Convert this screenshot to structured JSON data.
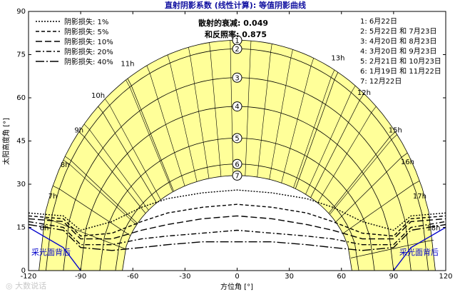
{
  "chart_data": {
    "type": "line",
    "title": "直射阴影系数 (线性计算): 等值阴影曲线",
    "xlabel": "方位角 [°]",
    "ylabel": "太阳高度角 [°]",
    "xlim": [
      -120,
      120
    ],
    "ylim": [
      0,
      90
    ],
    "xticks": [
      -120,
      -90,
      -60,
      -30,
      0,
      30,
      60,
      90,
      120
    ],
    "yticks": [
      0,
      15,
      30,
      45,
      60,
      75,
      90
    ],
    "grid": false,
    "info_lines": [
      "散射的衰减: 0.049",
      "和反照率: 0.875"
    ],
    "shading_legend": [
      {
        "label": "阴影损失: 1%",
        "dash": "2,2"
      },
      {
        "label": "阴影损失: 5%",
        "dash": "5,3"
      },
      {
        "label": "阴影损失: 10%",
        "dash": "9,4"
      },
      {
        "label": "阴影损失: 20%",
        "dash": "7,3,2,3"
      },
      {
        "label": "阴影损失: 40%",
        "dash": "12,3,2,3"
      }
    ],
    "date_legend": [
      "1: 6月22日",
      "2: 5月22日 和 7月23日",
      "3: 4月20日 和 8月23日",
      "4: 3月20日 和 9月23日",
      "5: 2月21日 和 10月23日",
      "6: 1月19日 和 11月22日",
      "7: 12月22日"
    ],
    "sun_paths": [
      {
        "id": "1",
        "max_alt": 80,
        "half_width": 114
      },
      {
        "id": "2",
        "max_alt": 77,
        "half_width": 110
      },
      {
        "id": "3",
        "max_alt": 67,
        "half_width": 100
      },
      {
        "id": "4",
        "max_alt": 57,
        "half_width": 90
      },
      {
        "id": "5",
        "max_alt": 46,
        "half_width": 79
      },
      {
        "id": "6",
        "max_alt": 37,
        "half_width": 70
      },
      {
        "id": "7",
        "max_alt": 33,
        "half_width": 66
      }
    ],
    "hour_labels": [
      {
        "text": "6h",
        "x": -111,
        "y": 14
      },
      {
        "text": "7h",
        "x": -106,
        "y": 25
      },
      {
        "text": "8h",
        "x": -99,
        "y": 36
      },
      {
        "text": "9h",
        "x": -91,
        "y": 48
      },
      {
        "text": "10h",
        "x": -80,
        "y": 60
      },
      {
        "text": "11h",
        "x": -63,
        "y": 71
      },
      {
        "text": "12h",
        "x": 73,
        "y": 61
      },
      {
        "text": "13h",
        "x": 58,
        "y": 73
      },
      {
        "text": "15h",
        "x": 91,
        "y": 48
      },
      {
        "text": "16h",
        "x": 98,
        "y": 37
      },
      {
        "text": "17h",
        "x": 105,
        "y": 25
      },
      {
        "text": "18h",
        "x": 113,
        "y": 14
      }
    ],
    "shading_curves": [
      {
        "label": "1%",
        "dash": "2,2",
        "points": [
          [
            -120,
            20
          ],
          [
            -100,
            19
          ],
          [
            -90,
            14
          ],
          [
            -72,
            17
          ],
          [
            -55,
            22
          ],
          [
            -40,
            25
          ],
          [
            -20,
            27
          ],
          [
            0,
            28
          ],
          [
            20,
            27
          ],
          [
            40,
            25
          ],
          [
            55,
            22
          ],
          [
            72,
            17
          ],
          [
            90,
            14
          ],
          [
            100,
            19
          ],
          [
            120,
            20
          ]
        ]
      },
      {
        "label": "5%",
        "dash": "5,3",
        "points": [
          [
            -120,
            19
          ],
          [
            -100,
            18
          ],
          [
            -90,
            12
          ],
          [
            -72,
            13
          ],
          [
            -55,
            17
          ],
          [
            -40,
            20
          ],
          [
            -20,
            22
          ],
          [
            0,
            23
          ],
          [
            20,
            22
          ],
          [
            40,
            20
          ],
          [
            55,
            17
          ],
          [
            72,
            13
          ],
          [
            90,
            12
          ],
          [
            100,
            18
          ],
          [
            120,
            19
          ]
        ]
      },
      {
        "label": "10%",
        "dash": "9,4",
        "points": [
          [
            -120,
            18
          ],
          [
            -100,
            17
          ],
          [
            -90,
            11
          ],
          [
            -72,
            11
          ],
          [
            -55,
            14
          ],
          [
            -40,
            16
          ],
          [
            -20,
            18
          ],
          [
            0,
            19
          ],
          [
            20,
            18
          ],
          [
            40,
            16
          ],
          [
            55,
            14
          ],
          [
            72,
            11
          ],
          [
            90,
            11
          ],
          [
            100,
            17
          ],
          [
            120,
            18
          ]
        ]
      },
      {
        "label": "20%",
        "dash": "7,3,2,3",
        "points": [
          [
            -120,
            17
          ],
          [
            -100,
            15
          ],
          [
            -90,
            9
          ],
          [
            -72,
            9
          ],
          [
            -55,
            11
          ],
          [
            -40,
            12
          ],
          [
            -20,
            13
          ],
          [
            0,
            14
          ],
          [
            20,
            13
          ],
          [
            40,
            12
          ],
          [
            55,
            11
          ],
          [
            72,
            9
          ],
          [
            90,
            9
          ],
          [
            100,
            15
          ],
          [
            120,
            17
          ]
        ]
      },
      {
        "label": "40%",
        "dash": "12,3,2,3",
        "points": [
          [
            -120,
            16
          ],
          [
            -100,
            14
          ],
          [
            -90,
            8
          ],
          [
            -72,
            7
          ],
          [
            -55,
            8
          ],
          [
            -40,
            9
          ],
          [
            -20,
            10
          ],
          [
            0,
            10
          ],
          [
            20,
            10
          ],
          [
            40,
            9
          ],
          [
            55,
            8
          ],
          [
            72,
            7
          ],
          [
            90,
            8
          ],
          [
            100,
            14
          ],
          [
            120,
            16
          ]
        ]
      }
    ],
    "back_side_labels": [
      "采光面背后",
      "采光面背后"
    ],
    "fill_color": "#ffff99",
    "curve_color": "#000000",
    "title_color": "#1010a0",
    "back_side_color": "#0000cc"
  },
  "watermark": "◎ 大数说话"
}
